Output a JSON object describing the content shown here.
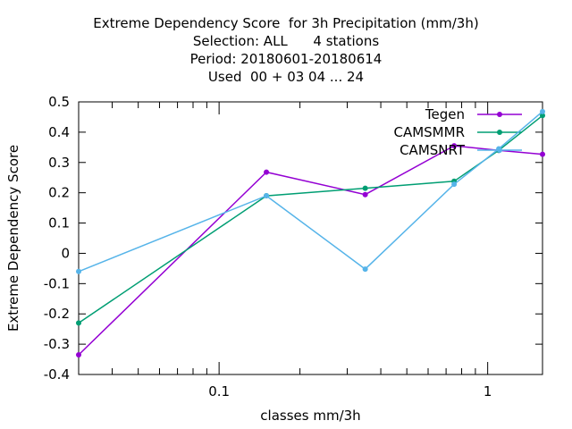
{
  "chart_data": {
    "type": "line",
    "title_lines": [
      "Extreme Dependency Score  for 3h Precipitation (mm/3h)",
      "Selection: ALL      4 stations",
      "Period: 20180601-20180614",
      "Used  00 + 03 04 ... 24"
    ],
    "xlabel": "classes mm/3h",
    "ylabel": "Extreme Dependency Score",
    "xscale": "log",
    "xlim": [
      0.03,
      1.6
    ],
    "ylim": [
      -0.4,
      0.5
    ],
    "yticks": [
      -0.4,
      -0.3,
      -0.2,
      -0.1,
      0,
      0.1,
      0.2,
      0.3,
      0.4,
      0.5
    ],
    "ytick_labels": [
      "-0.4",
      "-0.3",
      "-0.2",
      "-0.1",
      "0",
      "0.1",
      "0.2",
      "0.3",
      "0.4",
      "0.5"
    ],
    "xticks_major": [
      0.1,
      1
    ],
    "xtick_labels": [
      "0.1",
      "1"
    ],
    "xticks_minor": [
      0.04,
      0.05,
      0.06,
      0.07,
      0.08,
      0.09,
      0.2,
      0.3,
      0.4,
      0.5,
      0.6,
      0.7,
      0.8,
      0.9
    ],
    "grid": false,
    "legend_position": "top-right",
    "series": [
      {
        "name": "Tegen",
        "color": "#9400d3",
        "marker": "filled-circle",
        "points": [
          [
            0.03,
            -0.335
          ],
          [
            0.15,
            0.268
          ],
          [
            0.35,
            0.194
          ],
          [
            0.75,
            0.355
          ],
          [
            1.1,
            0.34
          ],
          [
            1.6,
            0.327
          ]
        ]
      },
      {
        "name": "CAMSMMR",
        "color": "#009e73",
        "marker": "filled-circle",
        "points": [
          [
            0.03,
            -0.23
          ],
          [
            0.15,
            0.19
          ],
          [
            0.35,
            0.215
          ],
          [
            0.75,
            0.238
          ],
          [
            1.1,
            0.34
          ],
          [
            1.6,
            0.455
          ]
        ]
      },
      {
        "name": "CAMSNRT",
        "color": "#56b4e9",
        "marker": "filled-circle",
        "points": [
          [
            0.03,
            -0.06
          ],
          [
            0.15,
            0.19
          ],
          [
            0.35,
            -0.052
          ],
          [
            0.75,
            0.228
          ],
          [
            1.1,
            0.345
          ],
          [
            1.6,
            0.468
          ]
        ]
      }
    ]
  }
}
